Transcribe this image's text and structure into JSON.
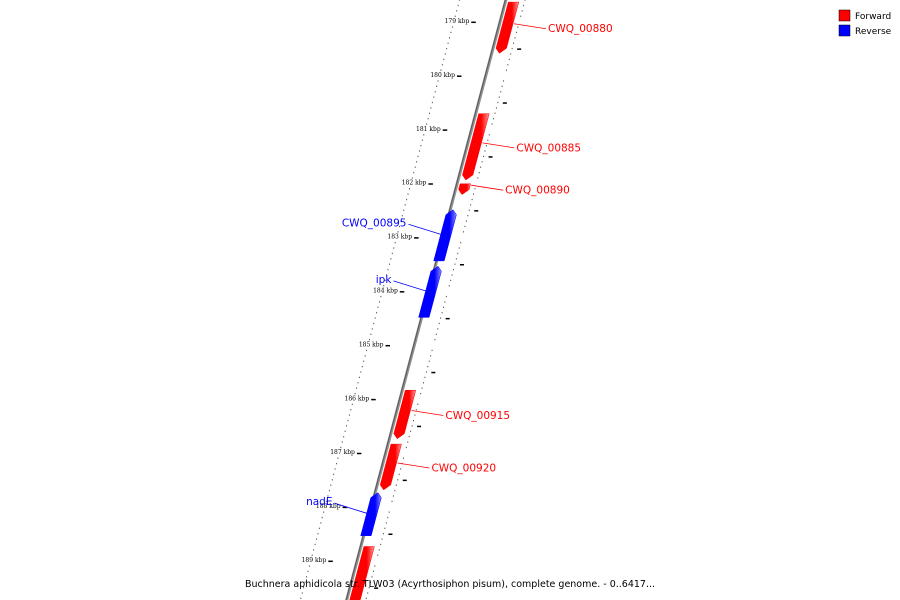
{
  "caption": "Buchnera aphidicola str. TLW03 (Acyrthosiphon pisum), complete genome. - 0..6417...",
  "legend": [
    {
      "label": "Forward",
      "color": "#ff0000"
    },
    {
      "label": "Reverse",
      "color": "#0000ff"
    }
  ],
  "chart_data": {
    "type": "genome-map",
    "unit": "kbp",
    "ticks": [
      179,
      180,
      181,
      182,
      183,
      184,
      185,
      186,
      187,
      188,
      189
    ],
    "genes": [
      {
        "label": "CWQ_00880",
        "strand": "forward",
        "start": 178.65,
        "end": 179.6,
        "labelled": true
      },
      {
        "label": "CWQ_00885",
        "strand": "forward",
        "start": 180.72,
        "end": 181.95,
        "labelled": true
      },
      {
        "label": "CWQ_00890",
        "strand": "forward",
        "start": 182.02,
        "end": 182.22,
        "labelled": true
      },
      {
        "label": "CWQ_00895",
        "strand": "reverse",
        "start": 182.5,
        "end": 183.45,
        "labelled": true
      },
      {
        "label": "ipk",
        "strand": "reverse",
        "start": 183.55,
        "end": 184.5,
        "labelled": true
      },
      {
        "label": "CWQ_00915",
        "strand": "forward",
        "start": 185.85,
        "end": 186.75,
        "labelled": true
      },
      {
        "label": "CWQ_00920",
        "strand": "forward",
        "start": 186.85,
        "end": 187.7,
        "labelled": true
      },
      {
        "label": "nadE",
        "strand": "reverse",
        "start": 187.75,
        "end": 188.55,
        "labelled": true
      },
      {
        "label": "",
        "strand": "forward",
        "start": 188.75,
        "end": 189.9,
        "labelled": false
      }
    ]
  }
}
